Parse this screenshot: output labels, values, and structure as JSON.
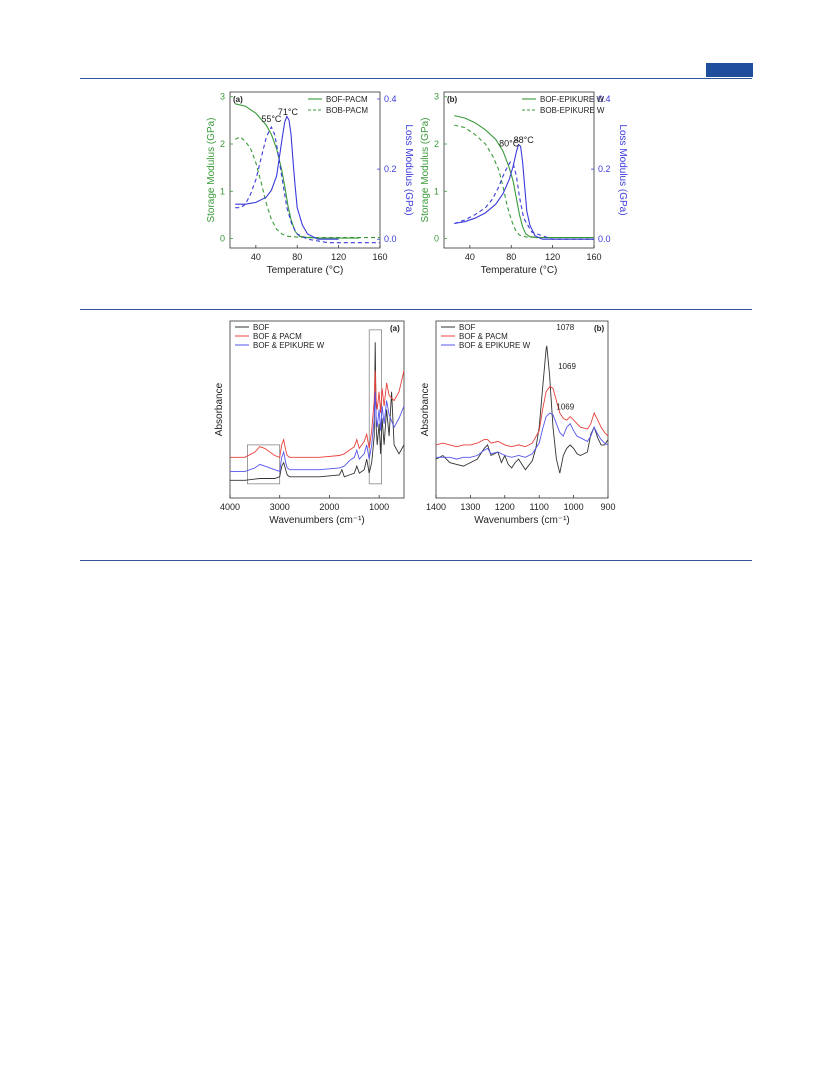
{
  "dma": [
    {
      "panel_label": "(a)",
      "type": "line",
      "xlabel": "Temperature (°C)",
      "ylabel_left": "Storage Modulus (GPa)",
      "ylabel_right": "Loss Modulus (GPa)",
      "xlim": [
        15,
        160
      ],
      "ylim_left": [
        -0.2,
        3.1
      ],
      "ylim_right": [
        -0.025,
        0.42
      ],
      "xticks": [
        40,
        80,
        120,
        160
      ],
      "yticks_left": [
        0,
        1,
        2,
        3
      ],
      "yticks_right": [
        0.0,
        0.2,
        0.4
      ],
      "legend": [
        "BOF-PACM",
        "BOB-PACM"
      ],
      "annotations": [
        {
          "text": "55°C",
          "x": 55,
          "y": 0.335
        },
        {
          "text": "71°C",
          "x": 71,
          "y": 0.355
        }
      ],
      "series": [
        {
          "name": "BOF-PACM",
          "axis": "left",
          "style": "solid",
          "color": "#3a9a3a",
          "x": [
            20,
            30,
            40,
            50,
            55,
            60,
            65,
            68,
            71,
            74,
            78,
            82,
            90,
            100,
            120,
            140
          ],
          "y": [
            2.85,
            2.8,
            2.65,
            2.4,
            2.2,
            1.9,
            1.45,
            1.1,
            0.7,
            0.4,
            0.15,
            0.05,
            0.02,
            0.01,
            0.01,
            0.01
          ]
        },
        {
          "name": "BOB-PACM",
          "axis": "left",
          "style": "dashed",
          "color": "#3a9a3a",
          "x": [
            20,
            25,
            30,
            35,
            40,
            45,
            50,
            55,
            60,
            65,
            70,
            80,
            100,
            130,
            160
          ],
          "y": [
            2.1,
            2.15,
            2.05,
            1.9,
            1.6,
            1.2,
            0.75,
            0.4,
            0.2,
            0.1,
            0.05,
            0.03,
            0.02,
            0.02,
            0.02
          ]
        },
        {
          "name": "BOF-PACM loss",
          "axis": "right",
          "style": "solid",
          "color": "#3b3bdb",
          "x": [
            20,
            30,
            40,
            50,
            55,
            60,
            63,
            66,
            68,
            70,
            72,
            74,
            76,
            78,
            80,
            85,
            90,
            100,
            110,
            120
          ],
          "y": [
            0.1,
            0.1,
            0.105,
            0.12,
            0.14,
            0.18,
            0.24,
            0.3,
            0.335,
            0.35,
            0.34,
            0.3,
            0.22,
            0.15,
            0.09,
            0.04,
            0.015,
            0.0,
            0.0,
            0.0
          ]
        },
        {
          "name": "BOB-PACM loss",
          "axis": "right",
          "style": "dashed",
          "color": "#3b3bdb",
          "x": [
            20,
            25,
            30,
            35,
            40,
            45,
            50,
            53,
            55,
            58,
            60,
            65,
            70,
            75,
            80,
            90,
            110,
            140,
            160
          ],
          "y": [
            0.09,
            0.09,
            0.1,
            0.13,
            0.17,
            0.23,
            0.29,
            0.31,
            0.32,
            0.3,
            0.27,
            0.18,
            0.09,
            0.04,
            0.015,
            0.0,
            -0.01,
            -0.01,
            -0.01
          ]
        }
      ]
    },
    {
      "panel_label": "(b)",
      "type": "line",
      "xlabel": "Temperature (°C)",
      "ylabel_left": "Storage Modulus (GPa)",
      "ylabel_right": "Loss Modulus (GPa)",
      "xlim": [
        15,
        160
      ],
      "ylim_left": [
        -0.2,
        3.1
      ],
      "ylim_right": [
        -0.025,
        0.42
      ],
      "xticks": [
        40,
        80,
        120,
        160
      ],
      "yticks_left": [
        0,
        1,
        2,
        3
      ],
      "yticks_right": [
        0.0,
        0.2,
        0.4
      ],
      "legend": [
        "BOF-EPIKURE W",
        "BOB-EPIKURE W"
      ],
      "annotations": [
        {
          "text": "80°C",
          "x": 78,
          "y": 0.265
        },
        {
          "text": "88°C",
          "x": 92,
          "y": 0.275
        }
      ],
      "series": [
        {
          "name": "BOF-EPIKURE W",
          "axis": "left",
          "style": "solid",
          "color": "#3a9a3a",
          "x": [
            25,
            35,
            45,
            55,
            65,
            72,
            78,
            82,
            85,
            88,
            91,
            94,
            98,
            105,
            120,
            160
          ],
          "y": [
            2.6,
            2.55,
            2.45,
            2.3,
            2.1,
            1.85,
            1.5,
            1.2,
            0.85,
            0.5,
            0.25,
            0.1,
            0.04,
            0.02,
            0.02,
            0.02
          ]
        },
        {
          "name": "BOB-EPIKURE W",
          "axis": "left",
          "style": "dashed",
          "color": "#3a9a3a",
          "x": [
            25,
            35,
            45,
            55,
            62,
            68,
            72,
            76,
            80,
            84,
            88,
            95,
            110,
            160
          ],
          "y": [
            2.4,
            2.35,
            2.2,
            2.0,
            1.75,
            1.45,
            1.1,
            0.7,
            0.4,
            0.18,
            0.07,
            0.03,
            0.02,
            0.02
          ]
        },
        {
          "name": "BOF-EPIKURE W loss",
          "axis": "right",
          "style": "solid",
          "color": "#3b3bdb",
          "x": [
            25,
            35,
            45,
            55,
            65,
            72,
            78,
            82,
            85,
            87,
            89,
            91,
            93,
            95,
            98,
            103,
            110,
            130,
            160
          ],
          "y": [
            0.045,
            0.05,
            0.06,
            0.075,
            0.1,
            0.13,
            0.17,
            0.21,
            0.25,
            0.27,
            0.265,
            0.22,
            0.15,
            0.08,
            0.04,
            0.01,
            0.0,
            0.0,
            0.0
          ]
        },
        {
          "name": "BOB-EPIKURE W loss",
          "axis": "right",
          "style": "dashed",
          "color": "#3b3bdb",
          "x": [
            25,
            35,
            45,
            55,
            62,
            68,
            72,
            76,
            79,
            82,
            85,
            88,
            92,
            100,
            120,
            160
          ],
          "y": [
            0.045,
            0.055,
            0.07,
            0.09,
            0.115,
            0.15,
            0.18,
            0.205,
            0.22,
            0.215,
            0.18,
            0.12,
            0.06,
            0.02,
            0.0,
            0.0
          ]
        }
      ]
    }
  ],
  "ftir": [
    {
      "panel_label": "(a)",
      "type": "line",
      "xlabel": "Wavenumbers (cm⁻¹)",
      "ylabel": "Absorbance",
      "xlim": [
        4000,
        500
      ],
      "ylim": [
        0,
        100
      ],
      "xticks": [
        4000,
        3000,
        2000,
        1000
      ],
      "legend": [
        "BOF",
        "BOF & PACM",
        "BOF & EPIKURE W"
      ],
      "boxes": [
        {
          "x0": 3650,
          "x1": 3000,
          "y0": 8,
          "y1": 30
        },
        {
          "x0": 1200,
          "x1": 950,
          "y0": 8,
          "y1": 95
        }
      ],
      "series": [
        {
          "name": "BOF",
          "color": "#333333",
          "x": [
            4000,
            3700,
            3400,
            3100,
            3000,
            2960,
            2920,
            2880,
            2850,
            2800,
            2600,
            2200,
            1800,
            1750,
            1700,
            1600,
            1500,
            1450,
            1400,
            1300,
            1250,
            1200,
            1150,
            1100,
            1080,
            1060,
            1040,
            1000,
            970,
            940,
            900,
            850,
            800,
            750,
            700,
            600,
            500
          ],
          "y": [
            10,
            10,
            11,
            11,
            12,
            18,
            20,
            16,
            13,
            12,
            12,
            12,
            13,
            16,
            12,
            13,
            14,
            18,
            14,
            16,
            22,
            14,
            20,
            35,
            88,
            40,
            30,
            42,
            25,
            45,
            30,
            50,
            35,
            60,
            30,
            25,
            30
          ]
        },
        {
          "name": "BOF & PACM",
          "color": "#e8403a",
          "x": [
            4000,
            3700,
            3500,
            3400,
            3300,
            3100,
            3000,
            2960,
            2920,
            2880,
            2850,
            2800,
            2600,
            2200,
            1800,
            1700,
            1600,
            1500,
            1450,
            1400,
            1300,
            1250,
            1200,
            1150,
            1100,
            1080,
            1060,
            1040,
            1000,
            970,
            940,
            900,
            850,
            800,
            700,
            600,
            500
          ],
          "y": [
            23,
            23,
            26,
            29,
            28,
            24,
            23,
            30,
            33,
            27,
            24,
            23,
            23,
            23,
            24,
            25,
            27,
            29,
            33,
            28,
            32,
            36,
            28,
            38,
            55,
            72,
            55,
            50,
            60,
            48,
            62,
            52,
            65,
            58,
            55,
            60,
            72
          ]
        },
        {
          "name": "BOF & EPIKURE W",
          "color": "#5555ee",
          "x": [
            4000,
            3700,
            3500,
            3400,
            3300,
            3100,
            3000,
            2960,
            2920,
            2880,
            2850,
            2800,
            2600,
            2200,
            1800,
            1700,
            1600,
            1500,
            1450,
            1400,
            1300,
            1250,
            1200,
            1150,
            1100,
            1080,
            1060,
            1040,
            1000,
            970,
            940,
            900,
            850,
            800,
            700,
            600,
            500
          ],
          "y": [
            15,
            15,
            17,
            19,
            18,
            16,
            15,
            23,
            26,
            20,
            17,
            16,
            16,
            16,
            17,
            18,
            21,
            23,
            27,
            22,
            25,
            30,
            22,
            30,
            45,
            60,
            45,
            40,
            50,
            38,
            52,
            42,
            55,
            47,
            40,
            45,
            52
          ]
        }
      ]
    },
    {
      "panel_label": "(b)",
      "type": "line",
      "xlabel": "Wavenumbers (cm⁻¹)",
      "ylabel": "Absorbance",
      "xlim": [
        1400,
        900
      ],
      "ylim": [
        0,
        100
      ],
      "xticks": [
        1400,
        1300,
        1200,
        1100,
        1000,
        900
      ],
      "legend": [
        "BOF",
        "BOF & PACM",
        "BOF & EPIKURE W"
      ],
      "annotations": [
        {
          "text": "1078",
          "x": 1050,
          "y": 95
        },
        {
          "text": "1069",
          "x": 1045,
          "y": 73
        },
        {
          "text": "1069",
          "x": 1050,
          "y": 50
        }
      ],
      "series": [
        {
          "name": "BOF",
          "color": "#333333",
          "x": [
            1400,
            1380,
            1360,
            1340,
            1320,
            1300,
            1280,
            1260,
            1250,
            1240,
            1220,
            1210,
            1200,
            1190,
            1180,
            1170,
            1160,
            1140,
            1120,
            1110,
            1100,
            1090,
            1080,
            1078,
            1070,
            1060,
            1050,
            1040,
            1030,
            1020,
            1010,
            1000,
            990,
            980,
            960,
            950,
            940,
            930,
            920,
            910,
            900
          ],
          "y": [
            22,
            24,
            20,
            19,
            18,
            20,
            22,
            28,
            30,
            24,
            26,
            20,
            24,
            19,
            17,
            20,
            22,
            16,
            21,
            28,
            40,
            62,
            84,
            86,
            70,
            40,
            22,
            14,
            24,
            28,
            30,
            28,
            25,
            24,
            26,
            36,
            40,
            34,
            30,
            30,
            33
          ]
        },
        {
          "name": "BOF & PACM",
          "color": "#e8403a",
          "x": [
            1400,
            1380,
            1360,
            1340,
            1320,
            1300,
            1280,
            1260,
            1250,
            1240,
            1220,
            1200,
            1180,
            1160,
            1140,
            1120,
            1100,
            1090,
            1080,
            1069,
            1060,
            1050,
            1040,
            1030,
            1020,
            1010,
            1000,
            990,
            980,
            960,
            950,
            940,
            930,
            920,
            910,
            900
          ],
          "y": [
            30,
            31,
            30,
            29,
            30,
            30,
            31,
            33,
            33,
            31,
            32,
            30,
            29,
            30,
            29,
            31,
            38,
            50,
            60,
            63,
            62,
            55,
            48,
            45,
            44,
            46,
            44,
            42,
            40,
            39,
            42,
            48,
            44,
            40,
            37,
            35
          ]
        },
        {
          "name": "BOF & EPIKURE W",
          "color": "#5555ee",
          "x": [
            1400,
            1380,
            1360,
            1340,
            1320,
            1300,
            1280,
            1260,
            1250,
            1240,
            1220,
            1200,
            1180,
            1160,
            1140,
            1120,
            1100,
            1090,
            1080,
            1069,
            1060,
            1050,
            1040,
            1030,
            1020,
            1010,
            1000,
            990,
            980,
            960,
            950,
            940,
            930,
            920,
            910,
            900
          ],
          "y": [
            23,
            23,
            23,
            22,
            23,
            23,
            24,
            27,
            28,
            25,
            26,
            24,
            23,
            24,
            23,
            25,
            31,
            39,
            46,
            48,
            47,
            42,
            37,
            35,
            40,
            42,
            38,
            35,
            34,
            32,
            35,
            40,
            36,
            33,
            31,
            30
          ]
        }
      ]
    }
  ]
}
